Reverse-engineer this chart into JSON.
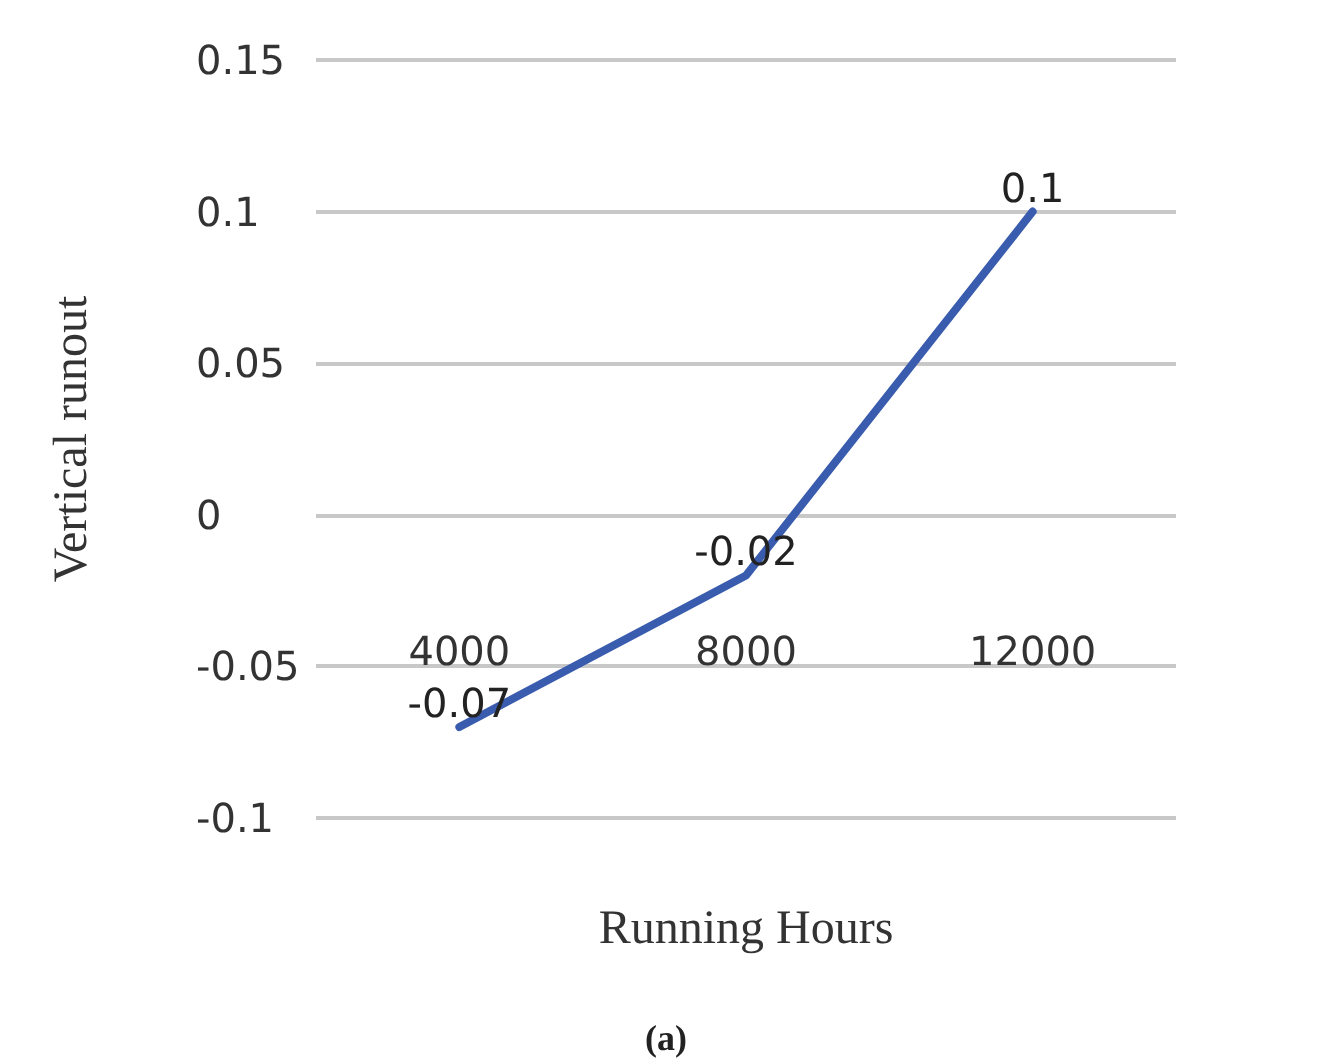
{
  "chart_data": {
    "type": "line",
    "xlabel": "Running Hours",
    "ylabel": "Vertical runout",
    "annotations": [
      "(a)"
    ],
    "categories": [
      "4000",
      "8000",
      "12000"
    ],
    "series": [
      {
        "color": "#3a5cae",
        "values": [
          -0.07,
          -0.02,
          0.1
        ]
      }
    ],
    "ylim": [
      -0.1,
      0.15
    ],
    "yticks": [
      -0.1,
      -0.05,
      0,
      0.05,
      0.1,
      0.15
    ],
    "grid": "y",
    "data_labels": true,
    "marker": "none",
    "line_style": "solid"
  }
}
